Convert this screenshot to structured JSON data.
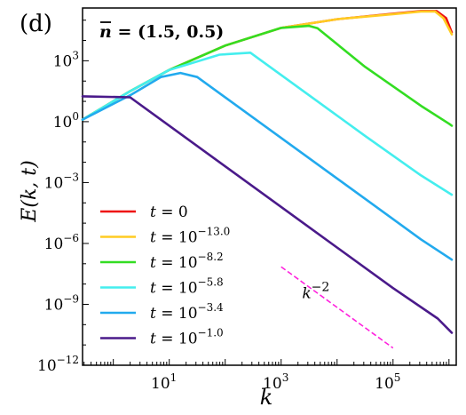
{
  "panel_label": "(d)",
  "chart_data": {
    "type": "line",
    "title": "n̄ = (1.5, 0.5)",
    "title_overline": "n",
    "title_rest": " = (1.5, 0.5)",
    "xlabel": "k",
    "ylabel": "E(k, t)",
    "xscale": "log",
    "yscale": "log",
    "xlim_log10": [
      -0.55,
      6.13
    ],
    "ylim_log10": [
      -12,
      5.6
    ],
    "x_ticks": [
      {
        "base": "10",
        "exp": "1",
        "log10": 1
      },
      {
        "base": "10",
        "exp": "3",
        "log10": 3
      },
      {
        "base": "10",
        "exp": "5",
        "log10": 5
      }
    ],
    "y_ticks": [
      {
        "base": "10",
        "exp": "3",
        "log10": 3
      },
      {
        "base": "10",
        "exp": "0",
        "log10": 0
      },
      {
        "base": "10",
        "exp": "−3",
        "log10": -3
      },
      {
        "base": "10",
        "exp": "−6",
        "log10": -6
      },
      {
        "base": "10",
        "exp": "−9",
        "log10": -9
      },
      {
        "base": "10",
        "exp": "−12",
        "log10": -12
      }
    ],
    "legend": {
      "placement": "lower-left"
    },
    "series": [
      {
        "name": "t = 0",
        "label_base": "t = 0",
        "label_exp": "",
        "color": "#ee1111",
        "points_log10": [
          [
            -0.55,
            0.1
          ],
          [
            0.3,
            1.5
          ],
          [
            1.0,
            2.55
          ],
          [
            2.0,
            3.75
          ],
          [
            3.0,
            4.62
          ],
          [
            4.0,
            5.05
          ],
          [
            5.0,
            5.32
          ],
          [
            5.5,
            5.45
          ],
          [
            5.78,
            5.45
          ],
          [
            5.95,
            5.1
          ],
          [
            6.05,
            4.4
          ]
        ]
      },
      {
        "name": "t = 10^-13.0",
        "label_base": "t = 10",
        "label_exp": "−13.0",
        "color": "#ffcc22",
        "points_log10": [
          [
            -0.55,
            0.1
          ],
          [
            0.3,
            1.5
          ],
          [
            1.0,
            2.55
          ],
          [
            2.0,
            3.75
          ],
          [
            3.0,
            4.62
          ],
          [
            4.0,
            5.05
          ],
          [
            5.0,
            5.3
          ],
          [
            5.5,
            5.43
          ],
          [
            5.75,
            5.43
          ],
          [
            5.9,
            5.1
          ],
          [
            6.05,
            4.3
          ]
        ]
      },
      {
        "name": "t = 10^-8.2",
        "label_base": "t = 10",
        "label_exp": "−8.2",
        "color": "#33dd22",
        "points_log10": [
          [
            -0.55,
            0.1
          ],
          [
            0.3,
            1.5
          ],
          [
            1.0,
            2.55
          ],
          [
            2.0,
            3.75
          ],
          [
            3.0,
            4.62
          ],
          [
            3.5,
            4.72
          ],
          [
            3.65,
            4.6
          ],
          [
            4.5,
            2.7
          ],
          [
            5.5,
            0.78
          ],
          [
            6.0,
            -0.1
          ],
          [
            6.05,
            -0.2
          ]
        ]
      },
      {
        "name": "t = 10^-5.8",
        "label_base": "t = 10",
        "label_exp": "−5.8",
        "color": "#44eeee",
        "points_log10": [
          [
            -0.55,
            0.1
          ],
          [
            0.3,
            1.5
          ],
          [
            1.0,
            2.55
          ],
          [
            1.9,
            3.3
          ],
          [
            2.45,
            3.4
          ],
          [
            3.5,
            1.3
          ],
          [
            4.5,
            -0.7
          ],
          [
            5.5,
            -2.65
          ],
          [
            6.05,
            -3.6
          ]
        ]
      },
      {
        "name": "t = 10^-3.4",
        "label_base": "t = 10",
        "label_exp": "−3.4",
        "color": "#22aaee",
        "points_log10": [
          [
            -0.55,
            0.1
          ],
          [
            0.3,
            1.3
          ],
          [
            0.85,
            2.2
          ],
          [
            1.2,
            2.4
          ],
          [
            1.5,
            2.2
          ],
          [
            3.0,
            -0.8
          ],
          [
            4.5,
            -3.8
          ],
          [
            5.5,
            -5.8
          ],
          [
            6.05,
            -6.8
          ]
        ]
      },
      {
        "name": "t = 10^-1.0",
        "label_base": "t = 10",
        "label_exp": "−1.0",
        "color": "#4a1a8a",
        "points_log10": [
          [
            -0.55,
            1.25
          ],
          [
            0.3,
            1.2
          ],
          [
            2.0,
            -2.2
          ],
          [
            3.5,
            -5.2
          ],
          [
            5.0,
            -8.2
          ],
          [
            5.8,
            -9.7
          ],
          [
            6.05,
            -10.4
          ]
        ]
      }
    ],
    "annotation": {
      "label_base": "k",
      "label_exp": "−2",
      "line_color": "#ff22dd",
      "line_points_log10": [
        [
          3.0,
          -7.15
        ],
        [
          5.0,
          -11.15
        ]
      ],
      "label_log10": [
        3.62,
        -8.7
      ]
    }
  }
}
